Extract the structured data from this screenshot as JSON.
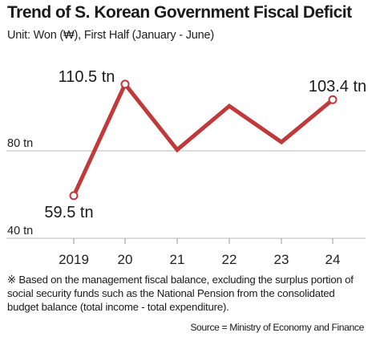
{
  "title": "Trend of S. Korean Government Fiscal Deficit",
  "subtitle": "Unit: Won (₩), First Half (January - June)",
  "footnote": "※ Based on the management fiscal balance, excluding the surplus portion of social security funds such as the National Pension from the consolidated budget balance (total income - total expenditure).",
  "source": "Source = Ministry of Economy and Finance",
  "chart_data": {
    "type": "line",
    "categories": [
      "2019",
      "20",
      "21",
      "22",
      "23",
      "24"
    ],
    "values": [
      59.5,
      110.5,
      80.5,
      100.5,
      84,
      103.4
    ],
    "y_ticks": [
      {
        "value": 40,
        "label": "40 tn"
      },
      {
        "value": 80,
        "label": "80 tn"
      }
    ],
    "ylim": [
      40,
      120
    ],
    "data_labels": [
      {
        "index": 0,
        "text": "59.5 tn"
      },
      {
        "index": 1,
        "text": "110.5 tn"
      },
      {
        "index": 5,
        "text": "103.4 tn"
      }
    ],
    "marked_points": [
      0,
      1,
      5
    ],
    "line_color": "#c0393b",
    "grid": "horizontal"
  }
}
